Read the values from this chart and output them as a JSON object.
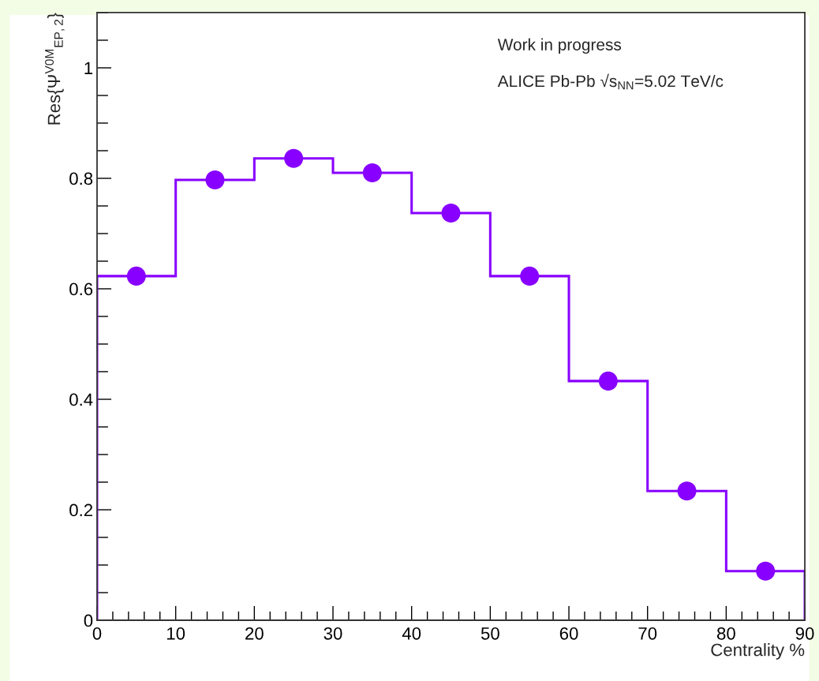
{
  "chart_data": {
    "type": "histogram",
    "bins": [
      0,
      10,
      20,
      30,
      40,
      50,
      60,
      70,
      80,
      90
    ],
    "values": [
      0.623,
      0.797,
      0.836,
      0.81,
      0.737,
      0.623,
      0.433,
      0.234,
      0.089
    ],
    "color": "#8800ff",
    "series": [
      {
        "type": "scatter",
        "x": [
          5,
          15,
          25,
          35,
          45,
          55,
          65,
          75,
          85
        ],
        "values": [
          0.623,
          0.797,
          0.836,
          0.81,
          0.737,
          0.623,
          0.433,
          0.234,
          0.089
        ],
        "color": "#8800ff",
        "marker": "circle"
      }
    ],
    "xlabel": "Centrality %",
    "ylabel": "Res{Ψ$^{V0M}$$_{EP,2}$}",
    "xlim": [
      0,
      90
    ],
    "ylim": [
      0,
      1.1
    ],
    "xticks": [
      0,
      10,
      20,
      30,
      40,
      50,
      60,
      70,
      80,
      90
    ],
    "yticks": [
      0,
      0.2,
      0.4,
      0.6,
      0.8,
      1
    ],
    "annotations": [
      "Work in progress",
      "ALICE Pb-Pb √s$_{NN}$=5.02 TeV/c"
    ],
    "grid": false,
    "legend": false
  }
}
